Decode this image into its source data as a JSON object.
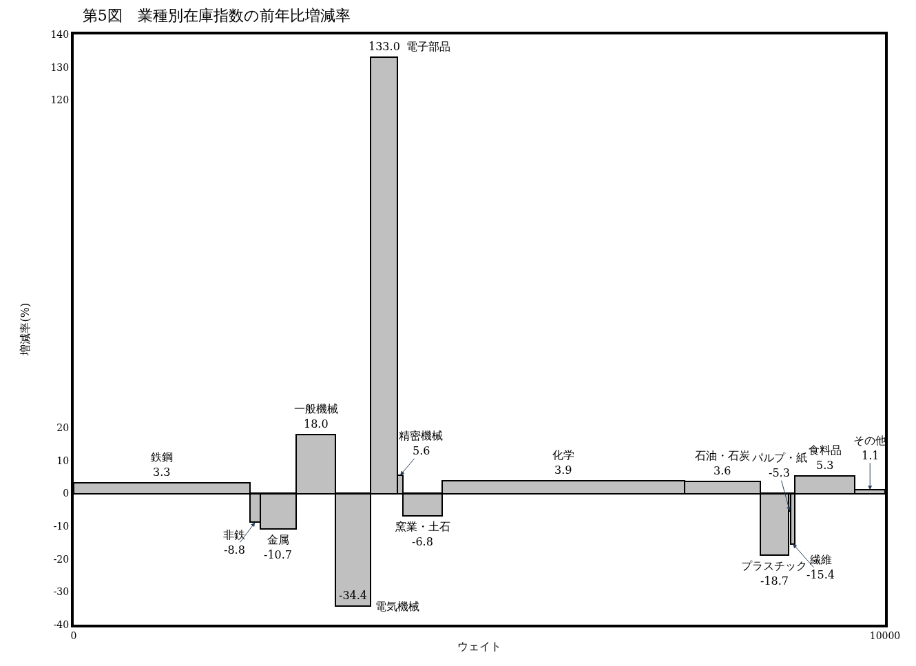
{
  "chart_data": {
    "type": "histogram",
    "title": "第5図　業種別在庫指数の前年比増減率",
    "xlabel": "ウェイト",
    "ylabel": "増減率(%)",
    "bins": [
      0,
      2170,
      2300,
      2740,
      3230,
      3660,
      3990,
      4060,
      4540,
      7530,
      8460,
      8810,
      8840,
      8890,
      9630,
      10000
    ],
    "categories": [
      "鉄鋼",
      "非鉄",
      "金属",
      "一般機械",
      "電気機械",
      "電子部品",
      "精密機械",
      "窯業・土石",
      "化学",
      "石油・石炭",
      "プラスチック",
      "パルプ・紙",
      "繊維",
      "食料品",
      "その他"
    ],
    "values": [
      3.3,
      -8.8,
      -10.7,
      18.0,
      -34.4,
      133.0,
      5.6,
      -6.8,
      3.9,
      3.6,
      -18.7,
      -5.3,
      -15.4,
      5.3,
      1.1
    ],
    "color": "#c0c0c0",
    "value_labels": [
      "3.3",
      "-8.8",
      "-10.7",
      "18.0",
      "-34.4",
      "133.0",
      "5.6",
      "-6.8",
      "3.9",
      "3.6",
      "-18.7",
      "-5.3",
      "-15.4",
      "5.3",
      "1.1"
    ],
    "xlim": [
      0,
      10000
    ],
    "xticks": [
      0,
      10000
    ],
    "ylim": [
      -40,
      140
    ],
    "yticks": [
      -40,
      -30,
      -20,
      -10,
      0,
      10,
      20,
      120,
      130,
      140
    ]
  }
}
